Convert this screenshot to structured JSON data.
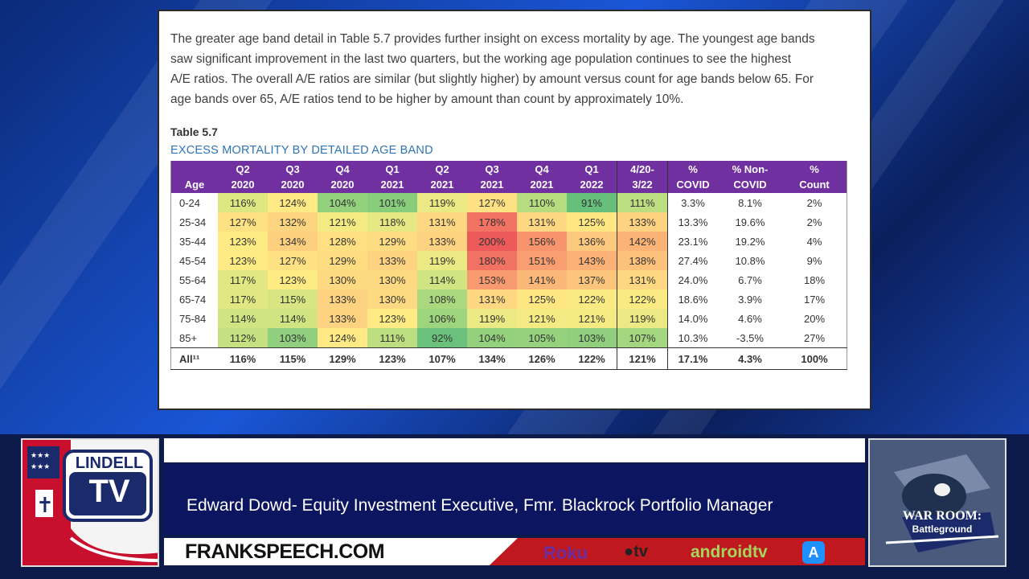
{
  "document": {
    "paragraph": [
      "The greater age band detail in Table 5.7 provides further insight on excess mortality by age. The youngest age bands",
      "saw significant improvement in the last two quarters, but the working age population continues to see the highest",
      "A/E ratios. The overall A/E ratios are similar (but slightly higher) by amount versus count for age bands below 65. For",
      "age bands over 65, A/E ratios tend to be higher by amount than count by approximately 10%."
    ],
    "table_number": "Table 5.7",
    "table_title": "EXCESS MORTALITY BY DETAILED AGE BAND",
    "headers": [
      [
        "Age",
        ""
      ],
      [
        "Q2",
        "2020"
      ],
      [
        "Q3",
        "2020"
      ],
      [
        "Q4",
        "2020"
      ],
      [
        "Q1",
        "2021"
      ],
      [
        "Q2",
        "2021"
      ],
      [
        "Q3",
        "2021"
      ],
      [
        "Q4",
        "2021"
      ],
      [
        "Q1",
        "2022"
      ],
      [
        "4/20-",
        "3/22"
      ],
      [
        "%",
        "COVID"
      ],
      [
        "% Non-",
        "COVID"
      ],
      [
        "%",
        "Count"
      ]
    ],
    "rows": [
      [
        "0-24",
        "116%",
        "124%",
        "104%",
        "101%",
        "119%",
        "127%",
        "110%",
        "91%",
        "111%",
        "3.3%",
        "8.1%",
        "2%"
      ],
      [
        "25-34",
        "127%",
        "132%",
        "121%",
        "118%",
        "131%",
        "178%",
        "131%",
        "125%",
        "133%",
        "13.3%",
        "19.6%",
        "2%"
      ],
      [
        "35-44",
        "123%",
        "134%",
        "128%",
        "129%",
        "133%",
        "200%",
        "156%",
        "136%",
        "142%",
        "23.1%",
        "19.2%",
        "4%"
      ],
      [
        "45-54",
        "123%",
        "127%",
        "129%",
        "133%",
        "119%",
        "180%",
        "151%",
        "143%",
        "138%",
        "27.4%",
        "10.8%",
        "9%"
      ],
      [
        "55-64",
        "117%",
        "123%",
        "130%",
        "130%",
        "114%",
        "153%",
        "141%",
        "137%",
        "131%",
        "24.0%",
        "6.7%",
        "18%"
      ],
      [
        "65-74",
        "117%",
        "115%",
        "133%",
        "130%",
        "108%",
        "131%",
        "125%",
        "122%",
        "122%",
        "18.6%",
        "3.9%",
        "17%"
      ],
      [
        "75-84",
        "114%",
        "114%",
        "133%",
        "123%",
        "106%",
        "119%",
        "121%",
        "121%",
        "119%",
        "14.0%",
        "4.6%",
        "20%"
      ],
      [
        "85+",
        "112%",
        "103%",
        "124%",
        "111%",
        "92%",
        "104%",
        "105%",
        "103%",
        "107%",
        "10.3%",
        "-3.5%",
        "27%"
      ]
    ],
    "total_row": [
      "All¹¹",
      "116%",
      "115%",
      "129%",
      "123%",
      "107%",
      "134%",
      "126%",
      "122%",
      "121%",
      "17.1%",
      "4.3%",
      "100%"
    ],
    "colors": {
      "header_purple": "#7030a0",
      "title_blue": "#2e75b6"
    }
  },
  "lower_third": {
    "speaker": "Edward Dowd- Equity Investment Executive, Fmr. Blackrock Portfolio Manager",
    "url": "FRANKSPEECH.COM",
    "apps": [
      "Roku",
      "tv",
      "androidtv"
    ],
    "left_logo": {
      "line1": "LINDELL",
      "line2": "TV"
    },
    "right_logo": {
      "line1": "WAR ROOM:",
      "line2": "Battleground"
    },
    "colors": {
      "banner_blue": "#0c1560",
      "banner_red": "#c0181f"
    }
  }
}
